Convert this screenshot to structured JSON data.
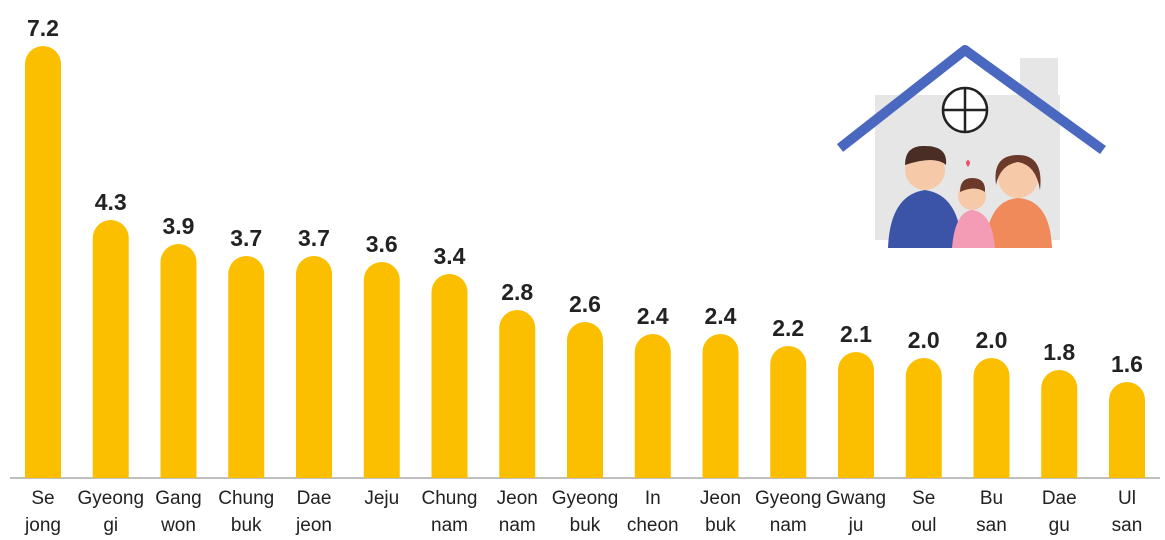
{
  "chart_data": {
    "type": "bar",
    "color": "#fbbf00",
    "categories": [
      [
        "Se",
        "jong"
      ],
      [
        "Gyeong",
        "gi"
      ],
      [
        "Gang",
        "won"
      ],
      [
        "Chung",
        "buk"
      ],
      [
        "Dae",
        "jeon"
      ],
      [
        "Jeju"
      ],
      [
        "Chung",
        "nam"
      ],
      [
        "Jeon",
        "nam"
      ],
      [
        "Gyeong",
        "buk"
      ],
      [
        "In",
        "cheon"
      ],
      [
        "Jeon",
        "buk"
      ],
      [
        "Gyeong",
        "nam"
      ],
      [
        "Gwang",
        "ju"
      ],
      [
        "Se",
        "oul"
      ],
      [
        "Bu",
        "san"
      ],
      [
        "Dae",
        "gu"
      ],
      [
        "Ul",
        "san"
      ]
    ],
    "values": [
      7.2,
      4.3,
      3.9,
      3.7,
      3.7,
      3.6,
      3.4,
      2.8,
      2.6,
      2.4,
      2.4,
      2.2,
      2.1,
      2.0,
      2.0,
      1.8,
      1.6
    ],
    "value_labels": [
      "7.2",
      "4.3",
      "3.9",
      "3.7",
      "3.7",
      "3.6",
      "3.4",
      "2.8",
      "2.6",
      "2.4",
      "2.4",
      "2.2",
      "2.1",
      "2.0",
      "2.0",
      "1.8",
      "1.6"
    ]
  }
}
